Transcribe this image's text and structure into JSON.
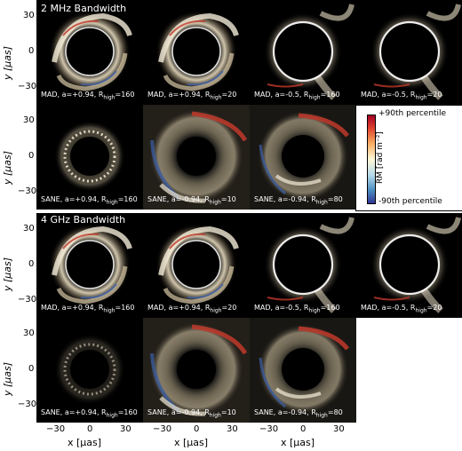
{
  "sections": {
    "top_title": "2 MHz Bandwidth",
    "bottom_title": "4 GHz Bandwidth"
  },
  "axes": {
    "ylabel": "y [μas]",
    "xlabel": "x [μas]",
    "ticks": [
      "30",
      "0",
      "−30"
    ],
    "xticks": [
      "−30",
      "0",
      "30"
    ]
  },
  "colorbar": {
    "top": "+90th percentile",
    "bottom": "-90th percentile",
    "label": "RM [rad m⁻²]"
  },
  "panels": {
    "r1": [
      {
        "main": "MAD, a=+0.94, R",
        "sub": "high",
        "tail": "=160"
      },
      {
        "main": "MAD, a=+0.94, R",
        "sub": "high",
        "tail": "=20"
      },
      {
        "main": "MAD, a=-0.5, R",
        "sub": "high",
        "tail": "=160"
      },
      {
        "main": "MAD, a=-0.5, R",
        "sub": "high",
        "tail": "=20"
      }
    ],
    "r2": [
      {
        "main": "SANE, a=+0.94, R",
        "sub": "high",
        "tail": "=160"
      },
      {
        "main": "SANE, a=-0.94, R",
        "sub": "high",
        "tail": "=10"
      },
      {
        "main": "SANE, a=-0.94, R",
        "sub": "high",
        "tail": "=80"
      }
    ],
    "r3": [
      {
        "main": "MAD, a=+0.94, R",
        "sub": "high",
        "tail": "=160"
      },
      {
        "main": "MAD, a=+0.94, R",
        "sub": "high",
        "tail": "=20"
      },
      {
        "main": "MAD, a=-0.5, R",
        "sub": "high",
        "tail": "=160"
      },
      {
        "main": "MAD, a=-0.5, R",
        "sub": "high",
        "tail": "=20"
      }
    ],
    "r4": [
      {
        "main": "SANE, a=+0.94, R",
        "sub": "high",
        "tail": "=160"
      },
      {
        "main": "SANE, a=-0.94, R",
        "sub": "high",
        "tail": "=10"
      },
      {
        "main": "SANE, a=-0.94, R",
        "sub": "high",
        "tail": "=80"
      }
    ]
  }
}
